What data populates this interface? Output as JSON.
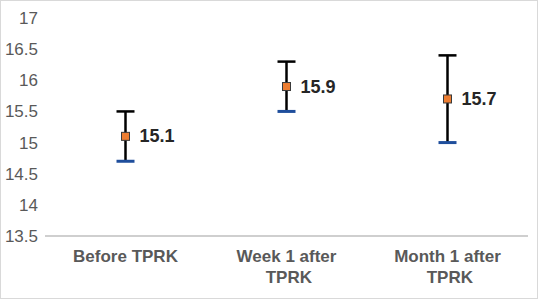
{
  "chart_data": {
    "type": "errorbar",
    "categories": [
      "Before TPRK",
      "Week 1 after TPRK",
      "Month 1 after TPRK"
    ],
    "values": [
      15.1,
      15.9,
      15.7
    ],
    "errors": [
      0.4,
      0.4,
      0.7
    ],
    "color": "#ed7d31",
    "marker": "square",
    "data_labels": true,
    "grid": false,
    "ylim": [
      13.5,
      17
    ],
    "yticks": [
      13.5,
      14,
      14.5,
      15,
      15.5,
      16,
      16.5,
      17
    ]
  }
}
